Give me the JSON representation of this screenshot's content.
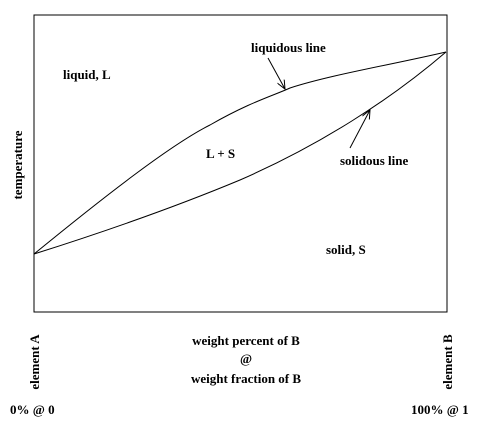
{
  "diagram": {
    "type": "binary-isomorphous-phase-diagram",
    "axis_y_label": "temperature",
    "axis_x_label_line1": "weight percent of B",
    "axis_x_label_line2": "@",
    "axis_x_label_line3": "weight fraction of B",
    "left_endpoint_label": "element A",
    "right_endpoint_label": "element B",
    "left_composition_label": "0% @ 0",
    "right_composition_label": "100% @ 1",
    "region_liquid": "liquid, L",
    "region_two_phase": "L + S",
    "region_solid": "solid, S",
    "liquidus_label": "liquidous line",
    "solidus_label": "solidous line"
  }
}
